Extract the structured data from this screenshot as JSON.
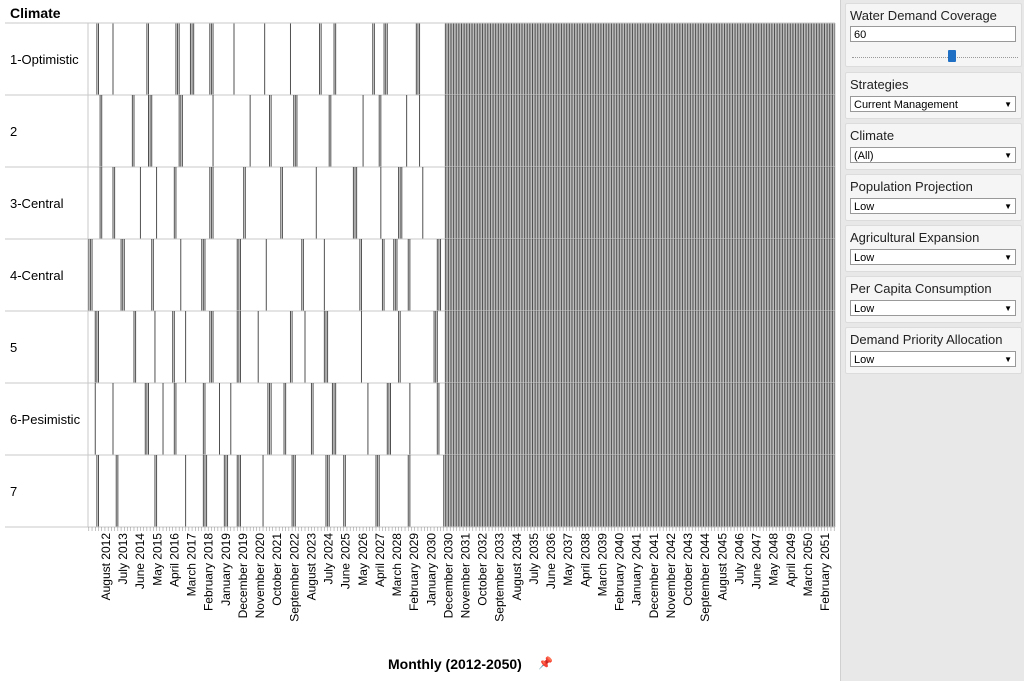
{
  "viz": {
    "title": "Climate",
    "x_axis_title": "Monthly (2012-2050)",
    "rows": [
      "1-Optimistic",
      "2",
      "3-Central",
      "4-Central",
      "5",
      "6-Pesimistic",
      "7"
    ],
    "tick_labels": [
      "August 2012",
      "July 2013",
      "June 2014",
      "May 2015",
      "April 2016",
      "March 2017",
      "February 2018",
      "January 2019",
      "December 2019",
      "November 2020",
      "October 2021",
      "September 2022",
      "August 2023",
      "July 2024",
      "June 2025",
      "May 2026",
      "April 2027",
      "March 2028",
      "February 2029",
      "January 2030",
      "December 2030",
      "November 2031",
      "October 2032",
      "September 2033",
      "August 2034",
      "July 2035",
      "June 2036",
      "May 2037",
      "April 2038",
      "March 2039",
      "February 2040",
      "January 2041",
      "December 2041",
      "November 2042",
      "October 2043",
      "September 2044",
      "August 2045",
      "July 2046",
      "June 2047",
      "May 2048",
      "April 2049",
      "March 2050",
      "February 2051"
    ],
    "months_total": 463,
    "dense_from_month": 221
  },
  "chart_data": {
    "type": "heatmap",
    "title": "Climate",
    "xlabel": "Monthly (2012-2050)",
    "categories_y": [
      "1-Optimistic",
      "2",
      "3-Central",
      "4-Central",
      "5",
      "6-Pesimistic",
      "7"
    ],
    "x_range": [
      "August 2012",
      "February 2051"
    ],
    "encoding": "vertical line = month flagged for the selected water demand coverage; from December 2030 onward every month is flagged in all climates",
    "line_color": "#505050"
  },
  "panel": {
    "water_demand_coverage": {
      "label": "Water Demand Coverage",
      "value": "60",
      "slider_level_fraction": 0.6
    },
    "strategies": {
      "label": "Strategies",
      "value": "Current Management"
    },
    "climate": {
      "label": "Climate",
      "value": "(All)"
    },
    "population_projection": {
      "label": "Population Projection",
      "value": "Low"
    },
    "agricultural_expansion": {
      "label": "Agricultural Expansion",
      "value": "Low"
    },
    "per_capita_consumption": {
      "label": "Per Capita Consumption",
      "value": "Low"
    },
    "demand_priority_allocation": {
      "label": "Demand Priority Allocation",
      "value": "Low"
    }
  }
}
